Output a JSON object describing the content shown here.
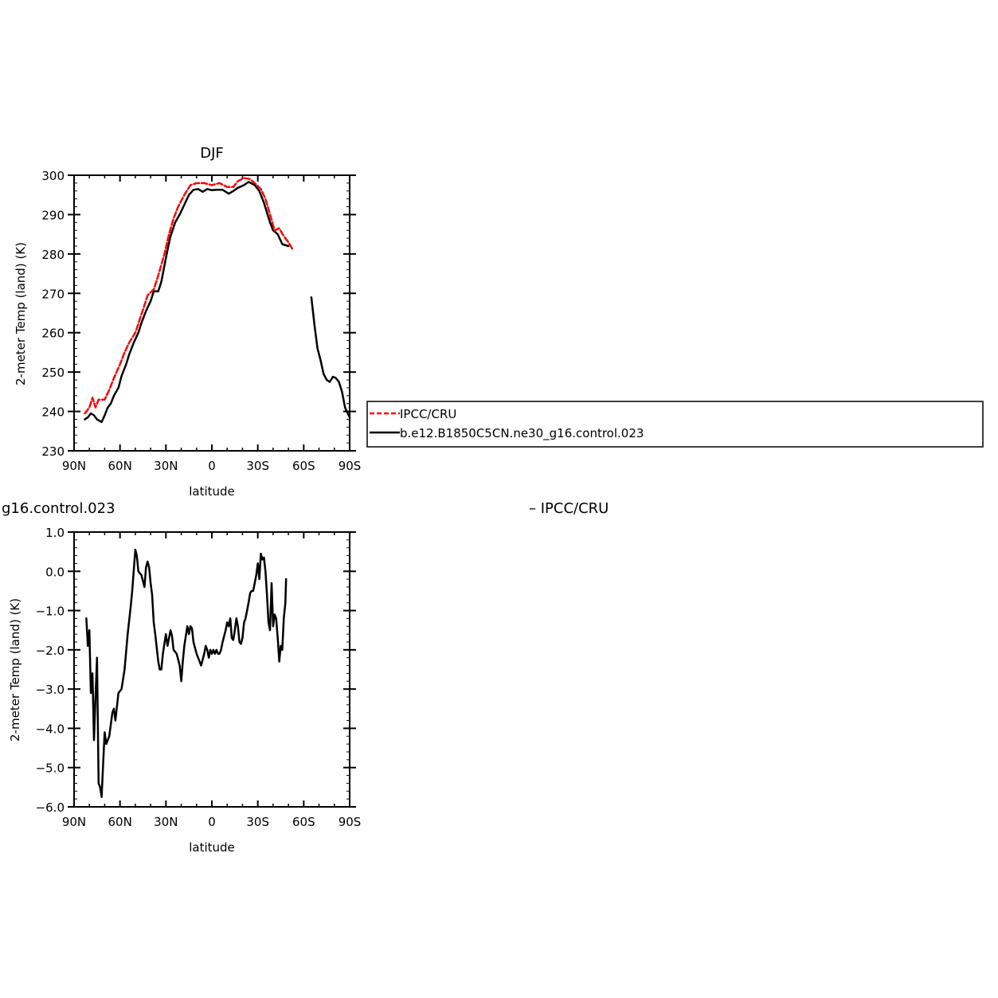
{
  "chart_data": [
    {
      "type": "line",
      "title": "DJF",
      "xlabel": "latitude",
      "ylabel": "2-meter Temp (land) (K)",
      "xlim": [
        -90,
        90
      ],
      "ylim": [
        230,
        300
      ],
      "x_ticks": [
        {
          "v": -90,
          "label": "90N"
        },
        {
          "v": -60,
          "label": "60N"
        },
        {
          "v": -30,
          "label": "30N"
        },
        {
          "v": 0,
          "label": "0"
        },
        {
          "v": 30,
          "label": "30S"
        },
        {
          "v": 60,
          "label": "60S"
        },
        {
          "v": 90,
          "label": "90S"
        }
      ],
      "y_ticks": [
        {
          "v": 230,
          "label": "230"
        },
        {
          "v": 240,
          "label": "240"
        },
        {
          "v": 250,
          "label": "250"
        },
        {
          "v": 260,
          "label": "260"
        },
        {
          "v": 270,
          "label": "270"
        },
        {
          "v": 280,
          "label": "280"
        },
        {
          "v": 290,
          "label": "290"
        },
        {
          "v": 300,
          "label": "300"
        }
      ],
      "legend": {
        "placement": "right",
        "entries": [
          {
            "name": "IPCC/CRU",
            "color": "#ff0000",
            "style": "dashed"
          },
          {
            "name": "b.e12.B1850C5CN.ne30_g16.control.023",
            "color": "#000000",
            "style": "solid"
          }
        ]
      },
      "series": [
        {
          "name": "IPCC/CRU",
          "color": "#ff0000",
          "style": "dashed",
          "segments": [
            [
              [
                -83,
                239.5
              ],
              [
                -80,
                241
              ],
              [
                -78,
                243.5
              ],
              [
                -76,
                241
              ],
              [
                -74,
                243
              ],
              [
                -72,
                243
              ],
              [
                -70,
                243
              ],
              [
                -67,
                245.5
              ],
              [
                -64,
                248.5
              ],
              [
                -60,
                252
              ],
              [
                -57,
                255
              ],
              [
                -54,
                257.5
              ],
              [
                -50,
                260
              ],
              [
                -47,
                263.5
              ],
              [
                -44,
                267
              ],
              [
                -42,
                269.5
              ],
              [
                -38,
                271
              ],
              [
                -35,
                274.5
              ],
              [
                -31,
                280
              ],
              [
                -28,
                285
              ],
              [
                -25,
                289
              ],
              [
                -22,
                292
              ],
              [
                -18,
                295
              ],
              [
                -14,
                297.5
              ],
              [
                -10,
                298
              ],
              [
                -5,
                298
              ],
              [
                0,
                297.5
              ],
              [
                5,
                298
              ],
              [
                10,
                297
              ],
              [
                14,
                297
              ],
              [
                17,
                298.5
              ],
              [
                21,
                299.3
              ],
              [
                25,
                299
              ],
              [
                28,
                298
              ],
              [
                32,
                296.5
              ],
              [
                35,
                294
              ],
              [
                38,
                290
              ],
              [
                41,
                286
              ],
              [
                44,
                286.5
              ],
              [
                47,
                284.5
              ],
              [
                50,
                283
              ],
              [
                53,
                281
              ]
            ]
          ]
        },
        {
          "name": "b.e12.B1850C5CN.ne30_g16.control.023",
          "color": "#000000",
          "style": "solid",
          "segments": [
            [
              [
                -83,
                238
              ],
              [
                -81,
                238.5
              ],
              [
                -79,
                239.5
              ],
              [
                -77,
                239
              ],
              [
                -75,
                238
              ],
              [
                -72,
                237.3
              ],
              [
                -70,
                239
              ],
              [
                -68,
                241
              ],
              [
                -66,
                242
              ],
              [
                -64,
                244
              ],
              [
                -61,
                246
              ],
              [
                -59,
                249
              ],
              [
                -56,
                252
              ],
              [
                -54,
                254.5
              ],
              [
                -51,
                257.5
              ],
              [
                -48,
                260
              ],
              [
                -46,
                262.5
              ],
              [
                -43,
                265.5
              ],
              [
                -40,
                268
              ],
              [
                -38,
                270.5
              ],
              [
                -35,
                270.5
              ],
              [
                -33,
                273
              ],
              [
                -31,
                277
              ],
              [
                -29,
                281
              ],
              [
                -27,
                284.5
              ],
              [
                -24,
                288
              ],
              [
                -21,
                290
              ],
              [
                -18,
                292.5
              ],
              [
                -15,
                295
              ],
              [
                -12,
                296.3
              ],
              [
                -9,
                296.5
              ],
              [
                -6,
                295.8
              ],
              [
                -3,
                296.5
              ],
              [
                0,
                296.2
              ],
              [
                3,
                296.3
              ],
              [
                7,
                296.3
              ],
              [
                11,
                295.3
              ],
              [
                14,
                296
              ],
              [
                17,
                296.8
              ],
              [
                21,
                297.5
              ],
              [
                24,
                298.3
              ],
              [
                28,
                297.5
              ],
              [
                31,
                296
              ],
              [
                34,
                293
              ],
              [
                36,
                290.5
              ],
              [
                38,
                288
              ],
              [
                40,
                286
              ],
              [
                43,
                285
              ],
              [
                46,
                282.5
              ],
              [
                50,
                282
              ]
            ],
            [
              [
                65,
                269
              ],
              [
                67,
                262
              ],
              [
                69,
                256
              ],
              [
                71,
                253
              ],
              [
                73,
                249.5
              ],
              [
                75,
                248
              ],
              [
                77,
                247.5
              ],
              [
                79,
                248.8
              ],
              [
                81,
                248.5
              ],
              [
                83,
                247.5
              ],
              [
                85,
                245
              ],
              [
                87,
                241
              ],
              [
                90,
                238.5
              ]
            ]
          ]
        }
      ]
    },
    {
      "type": "line",
      "title": "",
      "title_left": "g16.control.023",
      "title_right": "– IPCC/CRU",
      "xlabel": "latitude",
      "ylabel": "2-meter Temp (land) (K)",
      "xlim": [
        -90,
        90
      ],
      "ylim": [
        -6,
        1
      ],
      "x_ticks": [
        {
          "v": -90,
          "label": "90N"
        },
        {
          "v": -60,
          "label": "60N"
        },
        {
          "v": -30,
          "label": "30N"
        },
        {
          "v": 0,
          "label": "0"
        },
        {
          "v": 30,
          "label": "30S"
        },
        {
          "v": 60,
          "label": "60S"
        },
        {
          "v": 90,
          "label": "90S"
        }
      ],
      "y_ticks": [
        {
          "v": -6,
          "label": "−6.0"
        },
        {
          "v": -5,
          "label": "−5.0"
        },
        {
          "v": -4,
          "label": "−4.0"
        },
        {
          "v": -3,
          "label": "−3.0"
        },
        {
          "v": -2,
          "label": "−2.0"
        },
        {
          "v": -1,
          "label": "−1.0"
        },
        {
          "v": 0,
          "label": "0.0"
        },
        {
          "v": 1,
          "label": "1.0"
        }
      ],
      "series": [
        {
          "name": "",
          "color": "#000000",
          "style": "solid",
          "segments": [
            [
              [
                -82,
                -1.2
              ],
              [
                -81,
                -1.9
              ],
              [
                -80,
                -1.5
              ],
              [
                -79,
                -3.1
              ],
              [
                -78,
                -2.6
              ],
              [
                -77,
                -4.3
              ],
              [
                -76,
                -3.2
              ],
              [
                -75,
                -2.2
              ],
              [
                -74,
                -5.4
              ],
              [
                -73,
                -5.5
              ],
              [
                -72,
                -5.75
              ],
              [
                -71,
                -4.9
              ],
              [
                -70,
                -4.1
              ],
              [
                -69,
                -4.4
              ],
              [
                -67,
                -4.2
              ],
              [
                -65,
                -3.6
              ],
              [
                -64,
                -3.5
              ],
              [
                -63,
                -3.8
              ],
              [
                -61,
                -3.1
              ],
              [
                -59,
                -3.0
              ],
              [
                -57,
                -2.5
              ],
              [
                -55,
                -1.6
              ],
              [
                -53,
                -0.9
              ],
              [
                -52,
                -0.5
              ],
              [
                -50,
                0.55
              ],
              [
                -49,
                0.4
              ],
              [
                -48,
                0.0
              ],
              [
                -46,
                -0.1
              ],
              [
                -44,
                -0.4
              ],
              [
                -43,
                0.1
              ],
              [
                -42,
                0.25
              ],
              [
                -41,
                0.1
              ],
              [
                -40,
                -0.3
              ],
              [
                -39,
                -0.6
              ],
              [
                -38,
                -1.3
              ],
              [
                -37,
                -1.6
              ],
              [
                -35,
                -2.3
              ],
              [
                -34,
                -2.5
              ],
              [
                -33,
                -2.5
              ],
              [
                -32,
                -2.1
              ],
              [
                -30,
                -1.6
              ],
              [
                -29,
                -1.9
              ],
              [
                -28,
                -1.7
              ],
              [
                -27,
                -1.5
              ],
              [
                -26,
                -1.65
              ],
              [
                -25,
                -2.0
              ],
              [
                -23,
                -2.1
              ],
              [
                -21,
                -2.4
              ],
              [
                -20,
                -2.8
              ],
              [
                -19,
                -2.3
              ],
              [
                -18,
                -1.9
              ],
              [
                -16,
                -1.4
              ],
              [
                -15,
                -1.6
              ],
              [
                -14,
                -1.4
              ],
              [
                -13,
                -1.45
              ],
              [
                -12,
                -1.8
              ],
              [
                -10,
                -2.1
              ],
              [
                -8,
                -2.3
              ],
              [
                -7,
                -2.4
              ],
              [
                -5,
                -2.1
              ],
              [
                -4,
                -1.9
              ],
              [
                -3,
                -2.0
              ],
              [
                -2,
                -2.2
              ],
              [
                -1,
                -2.0
              ],
              [
                0,
                -2.1
              ],
              [
                1,
                -2.0
              ],
              [
                2,
                -2.1
              ],
              [
                3,
                -2.0
              ],
              [
                4,
                -2.1
              ],
              [
                5,
                -2.1
              ],
              [
                6,
                -2.0
              ],
              [
                7,
                -1.8
              ],
              [
                9,
                -1.5
              ],
              [
                10,
                -1.3
              ],
              [
                11,
                -1.4
              ],
              [
                12,
                -1.2
              ],
              [
                13,
                -1.7
              ],
              [
                14,
                -1.75
              ],
              [
                15,
                -1.5
              ],
              [
                16,
                -1.2
              ],
              [
                17,
                -1.4
              ],
              [
                18,
                -1.8
              ],
              [
                19,
                -1.85
              ],
              [
                20,
                -1.7
              ],
              [
                21,
                -1.3
              ],
              [
                22,
                -1.2
              ],
              [
                23,
                -1.0
              ],
              [
                24,
                -0.8
              ],
              [
                25,
                -0.55
              ],
              [
                26,
                -0.5
              ],
              [
                27,
                -0.5
              ],
              [
                28,
                -0.3
              ],
              [
                29,
                -0.1
              ],
              [
                30,
                0.2
              ],
              [
                31,
                -0.2
              ],
              [
                32,
                0.45
              ],
              [
                33,
                0.3
              ],
              [
                34,
                0.35
              ],
              [
                35,
                0.0
              ],
              [
                36,
                -0.6
              ],
              [
                37,
                -1.3
              ],
              [
                38,
                -1.5
              ],
              [
                39,
                -0.3
              ],
              [
                40,
                -1.4
              ],
              [
                41,
                -1.1
              ],
              [
                42,
                -1.2
              ],
              [
                43,
                -1.7
              ],
              [
                44,
                -2.3
              ],
              [
                45,
                -1.9
              ],
              [
                46,
                -2.0
              ],
              [
                47,
                -1.2
              ],
              [
                48,
                -0.8
              ],
              [
                48.5,
                -0.2
              ]
            ]
          ]
        }
      ]
    }
  ]
}
